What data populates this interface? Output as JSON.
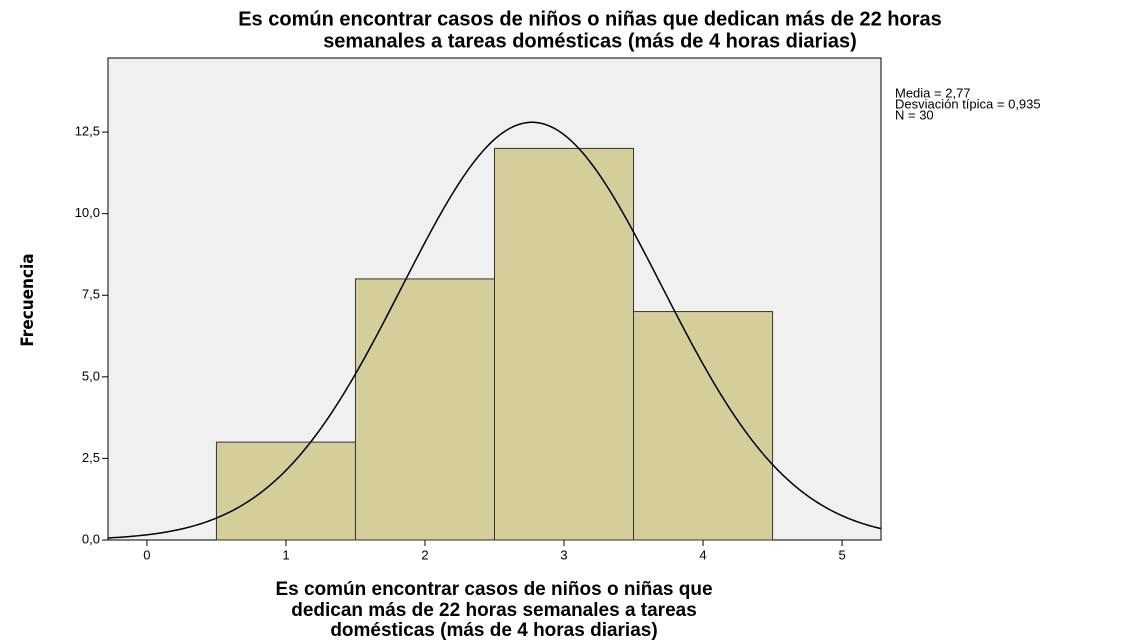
{
  "chart_data": {
    "type": "histogram",
    "title": [
      "Es común encontrar casos de niños o niñas que dedican más de 22 horas",
      "semanales a tareas domésticas (más de 4 horas diarias)"
    ],
    "x_label": [
      "Es común encontrar casos de niños o niñas que",
      "dedican más de 22 horas semanales a tareas",
      "domésticas (más de 4 horas diarias)"
    ],
    "y_label": "Frecuencia",
    "bins": [
      0.5,
      1.5,
      2.5,
      3.5,
      4.5
    ],
    "counts": [
      3,
      8,
      12,
      7
    ],
    "color": "#d3ce9a",
    "annotations": [
      "Media = 2,77",
      "Desviación típica = 0,935",
      "N = 30"
    ],
    "normal_curve": {
      "mean": 2.77,
      "sd": 0.935,
      "n": 30
    },
    "xlim": [
      -0.28,
      5.28
    ],
    "xticks": [
      0,
      1,
      2,
      3,
      4,
      5
    ],
    "ylim": [
      0,
      14.77
    ],
    "yticks": [
      {
        "value": 0,
        "label": "0,0"
      },
      {
        "value": 2.5,
        "label": "2,5"
      },
      {
        "value": 5,
        "label": "5,0"
      },
      {
        "value": 7.5,
        "label": "7,5"
      },
      {
        "value": 10,
        "label": "10,0"
      },
      {
        "value": 12.5,
        "label": "12,5"
      }
    ]
  }
}
